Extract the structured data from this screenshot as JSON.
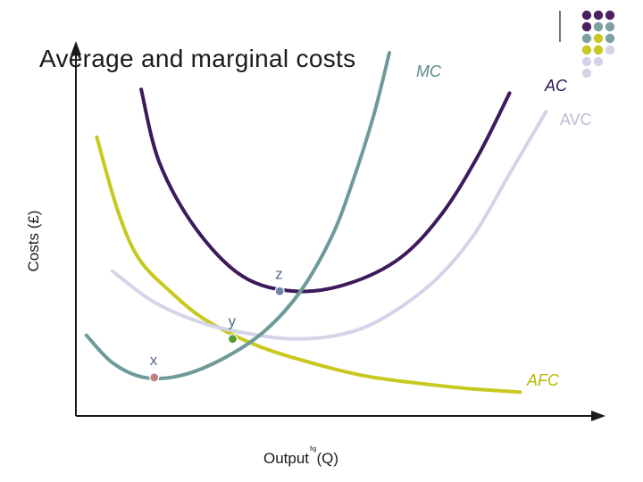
{
  "slide": {
    "title": "Average and marginal costs"
  },
  "chart_data": {
    "type": "line",
    "title": "Average and marginal costs",
    "xlabel_prefix": "Output",
    "xlabel_superscript": "fig",
    "xlabel_suffix": "(Q)",
    "ylabel": "Costs (£)",
    "xlim": [
      0,
      10
    ],
    "ylim": [
      0,
      10
    ],
    "grid": false,
    "series": [
      {
        "name": "AFC",
        "color": "#c8c820",
        "x": [
          0.4,
          0.8,
          1.2,
          1.8,
          2.5,
          3.5,
          4.5,
          5.5,
          6.5,
          7.5,
          8.5
        ],
        "y": [
          7.6,
          5.6,
          4.3,
          3.4,
          2.6,
          1.9,
          1.45,
          1.1,
          0.9,
          0.75,
          0.65
        ]
      },
      {
        "name": "AVC",
        "color": "#d4d4e8",
        "x": [
          0.7,
          1.5,
          2.5,
          3.5,
          4.2,
          5.0,
          5.8,
          6.8,
          7.6,
          8.3,
          9.0
        ],
        "y": [
          3.95,
          3.1,
          2.5,
          2.2,
          2.1,
          2.2,
          2.6,
          3.6,
          4.9,
          6.6,
          8.3
        ]
      },
      {
        "name": "AC",
        "color": "#3d1a5c",
        "x": [
          1.25,
          1.6,
          2.3,
          3.2,
          4.2,
          5.2,
          6.2,
          7.0,
          7.7,
          8.3
        ],
        "y": [
          8.9,
          6.9,
          5.1,
          3.8,
          3.4,
          3.6,
          4.3,
          5.5,
          7.1,
          8.8
        ]
      },
      {
        "name": "MC",
        "color": "#6e9a9a",
        "x": [
          0.2,
          0.7,
          1.3,
          2.0,
          2.8,
          3.6,
          4.3,
          4.9,
          5.3,
          5.7,
          6.0
        ],
        "y": [
          2.2,
          1.45,
          1.05,
          1.1,
          1.55,
          2.3,
          3.4,
          4.9,
          6.4,
          8.2,
          9.9
        ]
      }
    ],
    "points": [
      {
        "label": "x",
        "x": 1.5,
        "y": 1.05,
        "color": "#c08080"
      },
      {
        "label": "y",
        "x": 3.0,
        "y": 2.1,
        "color": "#5a9a3a"
      },
      {
        "label": "z",
        "x": 3.9,
        "y": 3.4,
        "color": "#6e84a8"
      }
    ]
  },
  "decor": {
    "dot_colors": [
      "#4a2060",
      "#7fa0a0",
      "#c8c820",
      "#d4d4e8"
    ]
  }
}
